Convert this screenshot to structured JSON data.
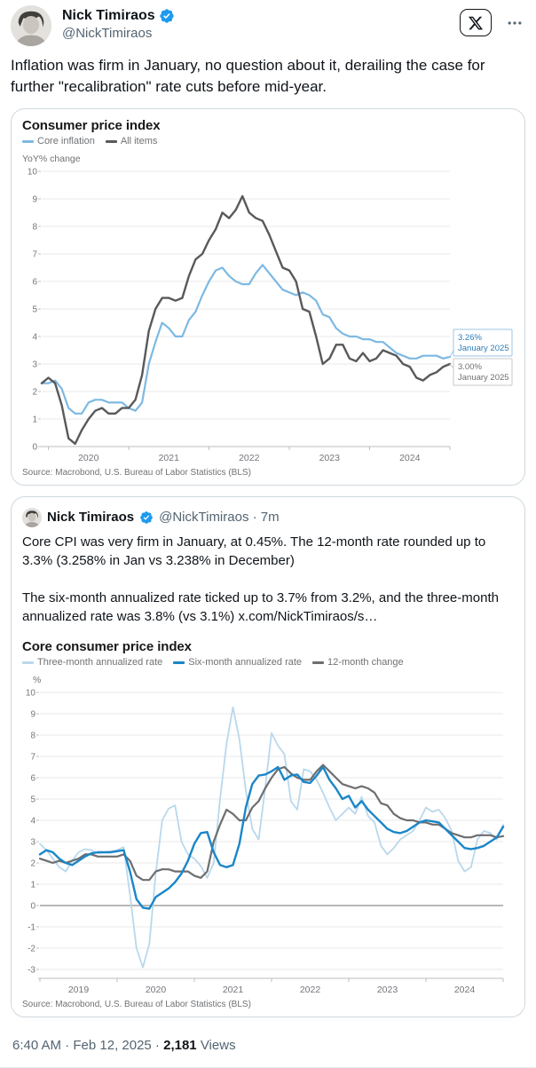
{
  "tweet": {
    "author": "Nick Timiraos",
    "handle": "@NickTimiraos",
    "text": "Inflation was firm in January, no question about it, derailing the case for further \"recalibration\" rate cuts before mid-year."
  },
  "quoted": {
    "author": "Nick Timiraos",
    "meta": "@NickTimiraos · 7m",
    "para1": "Core CPI was very firm in January, at 0.45%. The 12-month rate rounded up to 3.3% (3.258% in Jan vs 3.238% in December)",
    "para2_text": "The six-month annualized rate ticked up to 3.7% from 3.2%, and the three-month annualized rate was 3.8% (vs 3.1%)  ",
    "para2_link": "x.com/NickTimiraos/s…"
  },
  "footer": {
    "timestamp": "6:40 AM · Feb 12, 2025 ·",
    "views_count": "2,181",
    "views_label": "Views"
  },
  "icons": {
    "x_logo": "x-logo",
    "more": "more-ellipsis",
    "verified": "verified-badge"
  },
  "colors": {
    "accent_blue": "#1d9bf0",
    "text_primary": "#0f1419",
    "text_secondary": "#536471",
    "card_border": "#cfd9de"
  },
  "chart_data": [
    {
      "type": "line",
      "title": "Consumer price index",
      "ylabel": "YoY% change",
      "source": "Source: Macrobond, U.S. Bureau of Labor Statistics (BLS)",
      "x_start": "2019-12",
      "x_end": "2025-01",
      "frequency": "monthly",
      "ylim": [
        0,
        10
      ],
      "grid": true,
      "legend_position": "top-left",
      "x_tick_labels": [
        "2020",
        "2021",
        "2022",
        "2023",
        "2024"
      ],
      "series": [
        {
          "name": "Core inflation",
          "color": "#7db9e2",
          "values": [
            2.3,
            2.3,
            2.4,
            2.1,
            1.4,
            1.2,
            1.2,
            1.6,
            1.7,
            1.7,
            1.6,
            1.6,
            1.6,
            1.4,
            1.3,
            1.6,
            3.0,
            3.8,
            4.5,
            4.3,
            4.0,
            4.0,
            4.6,
            4.9,
            5.5,
            6.0,
            6.4,
            6.5,
            6.2,
            6.0,
            5.9,
            5.9,
            6.3,
            6.6,
            6.3,
            6.0,
            5.7,
            5.6,
            5.5,
            5.6,
            5.5,
            5.3,
            4.8,
            4.7,
            4.3,
            4.1,
            4.0,
            4.0,
            3.9,
            3.9,
            3.8,
            3.8,
            3.6,
            3.4,
            3.3,
            3.2,
            3.2,
            3.3,
            3.3,
            3.3,
            3.2,
            3.26
          ]
        },
        {
          "name": "All items",
          "color": "#58595b",
          "values": [
            2.3,
            2.5,
            2.3,
            1.5,
            0.3,
            0.1,
            0.6,
            1.0,
            1.3,
            1.4,
            1.2,
            1.2,
            1.4,
            1.4,
            1.7,
            2.6,
            4.2,
            5.0,
            5.4,
            5.4,
            5.3,
            5.4,
            6.2,
            6.8,
            7.0,
            7.5,
            7.9,
            8.5,
            8.3,
            8.6,
            9.1,
            8.5,
            8.3,
            8.2,
            7.7,
            7.1,
            6.5,
            6.4,
            6.0,
            5.0,
            4.9,
            4.0,
            3.0,
            3.2,
            3.7,
            3.7,
            3.2,
            3.1,
            3.4,
            3.1,
            3.2,
            3.5,
            3.4,
            3.3,
            3.0,
            2.9,
            2.5,
            2.4,
            2.6,
            2.7,
            2.9,
            3.0
          ]
        }
      ],
      "annotations": [
        {
          "series": "Core inflation",
          "value": 3.26,
          "label": "3.26%",
          "sublabel": "January 2025",
          "text_color": "#2e7cb8",
          "border_color": "#9cc6e6"
        },
        {
          "series": "All items",
          "value": 3.0,
          "label": "3.00%",
          "sublabel": "January 2025",
          "text_color": "#6e6f71",
          "border_color": "#c9c9c9"
        }
      ]
    },
    {
      "type": "line",
      "title": "Core consumer price index",
      "ylabel": "%",
      "source": "Source: Macrobond, U.S. Bureau of Labor Statistics (BLS)",
      "x_start": "2019-01",
      "x_end": "2025-01",
      "frequency": "monthly",
      "ylim": [
        -3,
        10
      ],
      "grid": true,
      "legend_position": "top-left",
      "x_tick_labels": [
        "2019",
        "2020",
        "2021",
        "2022",
        "2023",
        "2024"
      ],
      "series": [
        {
          "name": "Three-month annualized rate",
          "color": "#b9d8ec",
          "values": [
            2.9,
            2.6,
            2.2,
            1.8,
            1.6,
            2.1,
            2.5,
            2.65,
            2.6,
            2.45,
            2.5,
            2.55,
            2.6,
            2.75,
            0.5,
            -2.0,
            -2.9,
            -1.8,
            1.5,
            4.0,
            4.55,
            4.7,
            3.0,
            2.4,
            2.2,
            1.85,
            1.3,
            2.0,
            5.0,
            7.6,
            9.3,
            7.8,
            5.4,
            3.6,
            3.1,
            5.5,
            8.1,
            7.5,
            7.1,
            4.9,
            4.5,
            6.4,
            6.3,
            5.9,
            5.3,
            4.6,
            4.0,
            4.3,
            4.6,
            4.3,
            5.1,
            4.2,
            3.9,
            2.8,
            2.4,
            2.7,
            3.1,
            3.3,
            3.5,
            4.0,
            4.6,
            4.4,
            4.5,
            4.1,
            3.5,
            2.1,
            1.6,
            1.8,
            3.1,
            3.5,
            3.4,
            3.1,
            3.8
          ]
        },
        {
          "name": "Six-month annualized rate",
          "color": "#1a86c8",
          "values": [
            2.4,
            2.6,
            2.5,
            2.2,
            2.0,
            1.9,
            2.1,
            2.3,
            2.45,
            2.5,
            2.5,
            2.5,
            2.55,
            2.6,
            1.6,
            0.3,
            -0.1,
            -0.15,
            0.4,
            0.6,
            0.8,
            1.1,
            1.5,
            2.1,
            2.9,
            3.4,
            3.45,
            2.5,
            1.9,
            1.8,
            1.9,
            2.9,
            4.6,
            5.7,
            6.1,
            6.15,
            6.3,
            6.5,
            5.9,
            6.1,
            6.15,
            5.8,
            5.75,
            6.1,
            6.5,
            5.9,
            5.5,
            5.0,
            5.15,
            4.6,
            4.9,
            4.5,
            4.2,
            3.9,
            3.6,
            3.45,
            3.4,
            3.5,
            3.7,
            3.9,
            4.0,
            3.95,
            3.9,
            3.6,
            3.3,
            3.0,
            2.7,
            2.65,
            2.7,
            2.8,
            3.0,
            3.2,
            3.7
          ]
        },
        {
          "name": "12-month change",
          "color": "#6d6e70",
          "values": [
            2.2,
            2.1,
            2.0,
            2.1,
            2.0,
            2.1,
            2.2,
            2.4,
            2.4,
            2.3,
            2.3,
            2.3,
            2.3,
            2.4,
            2.1,
            1.4,
            1.2,
            1.2,
            1.6,
            1.7,
            1.7,
            1.6,
            1.6,
            1.6,
            1.4,
            1.3,
            1.6,
            3.0,
            3.8,
            4.5,
            4.3,
            4.0,
            4.0,
            4.6,
            4.9,
            5.5,
            6.0,
            6.4,
            6.5,
            6.2,
            6.0,
            5.9,
            5.9,
            6.3,
            6.6,
            6.3,
            6.0,
            5.7,
            5.6,
            5.5,
            5.6,
            5.5,
            5.3,
            4.8,
            4.7,
            4.3,
            4.1,
            4.0,
            4.0,
            3.9,
            3.9,
            3.8,
            3.8,
            3.6,
            3.4,
            3.3,
            3.2,
            3.2,
            3.3,
            3.3,
            3.3,
            3.2,
            3.26
          ]
        }
      ]
    }
  ]
}
